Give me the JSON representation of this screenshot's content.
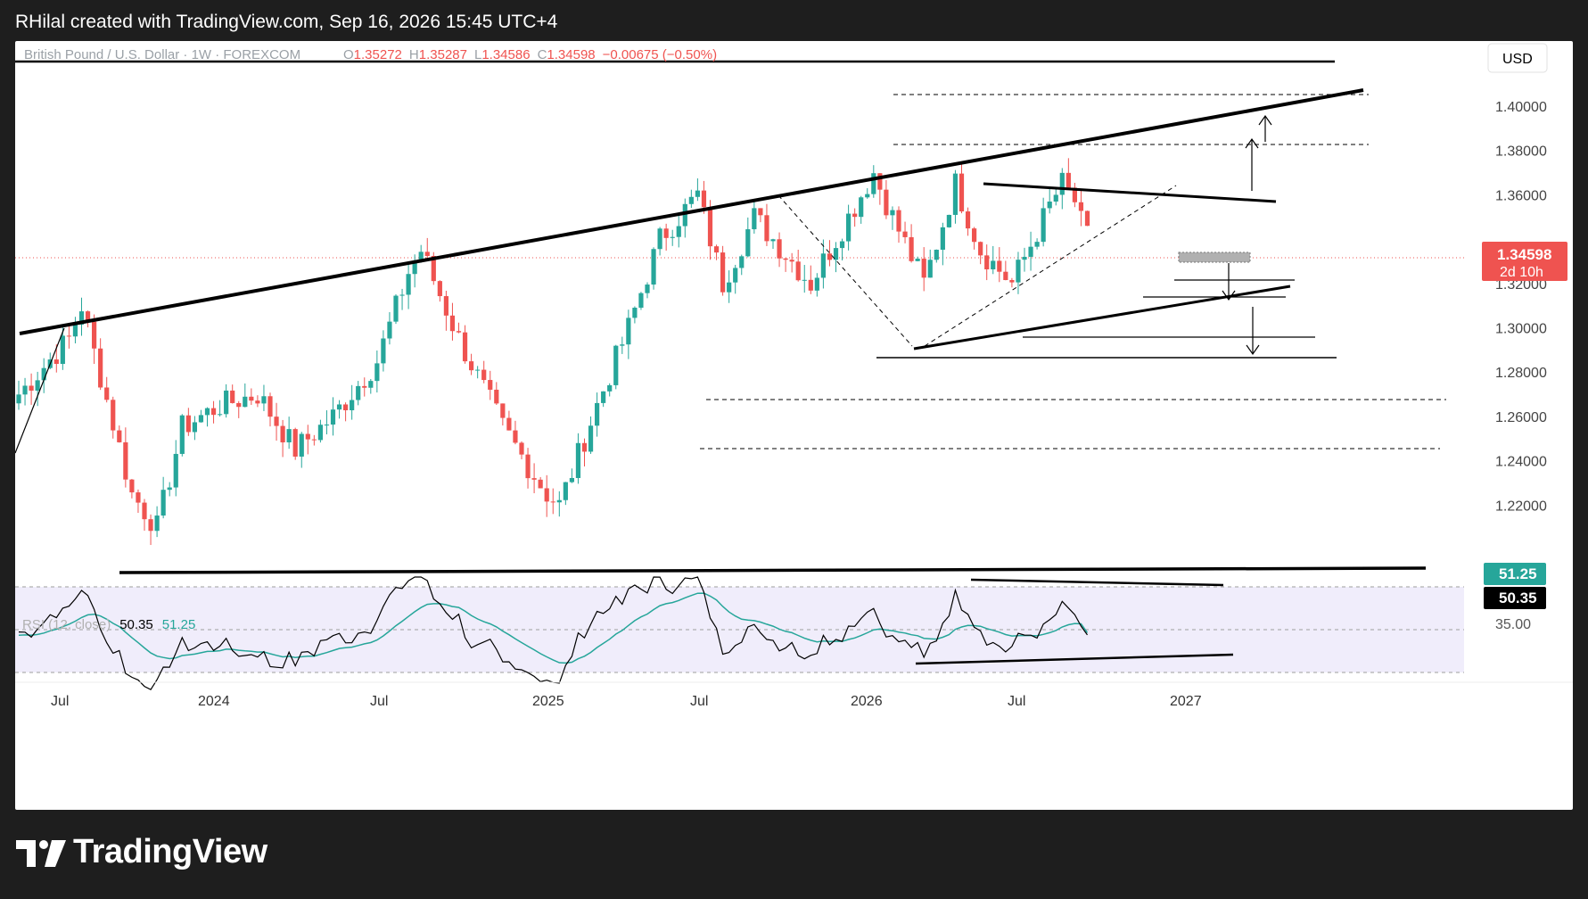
{
  "header": {
    "attribution": "RHilal created with TradingView.com, Sep 16, 2026 15:45 UTC+4"
  },
  "legend": {
    "symbol": "British Pound / U.S. Dollar · 1W · FOREXCOM",
    "open_label": "O",
    "open": "1.35272",
    "high_label": "H",
    "high": "1.35287",
    "low_label": "L",
    "low": "1.34586",
    "close_label": "C",
    "close": "1.34598",
    "change": "−0.00675 (−0.50%)"
  },
  "currency_button": "USD",
  "price_badge": {
    "price": "1.34598",
    "countdown": "2d 10h"
  },
  "rsi": {
    "label": "RSI (12, close)",
    "value": "50.35",
    "ma_value": "51.25",
    "level_label": "35.00"
  },
  "footer": {
    "brand": "TradingView"
  },
  "colors": {
    "up": "#26a69a",
    "down": "#ef5350",
    "rsi_line": "#000000",
    "rsi_ma": "#26a69a",
    "price_line": "#ef5350"
  },
  "chart_data": {
    "type": "candlestick",
    "title": "British Pound / U.S. Dollar · 1W · FOREXCOM",
    "timeframe": "1W",
    "y_range": [
      1.196,
      1.42
    ],
    "y_ticks": [
      "1.40000",
      "1.38000",
      "1.36000",
      "1.32000",
      "1.30000",
      "1.28000",
      "1.26000",
      "1.24000",
      "1.22000"
    ],
    "x_ticks": [
      "Jul",
      "2024",
      "Jul",
      "2025",
      "Jul",
      "2026",
      "Jul",
      "2027"
    ],
    "ohlc_anchor_points": [
      {
        "week": 0,
        "close": 1.27
      },
      {
        "week": 8,
        "close": 1.295
      },
      {
        "week": 10,
        "close": 1.31
      },
      {
        "week": 18,
        "close": 1.225
      },
      {
        "week": 22,
        "close": 1.21
      },
      {
        "week": 26,
        "close": 1.255
      },
      {
        "week": 32,
        "close": 1.265
      },
      {
        "week": 38,
        "close": 1.27
      },
      {
        "week": 44,
        "close": 1.245
      },
      {
        "week": 50,
        "close": 1.26
      },
      {
        "week": 57,
        "close": 1.285
      },
      {
        "week": 62,
        "close": 1.325
      },
      {
        "week": 64,
        "close": 1.335
      },
      {
        "week": 70,
        "close": 1.295
      },
      {
        "week": 77,
        "close": 1.255
      },
      {
        "week": 84,
        "close": 1.225
      },
      {
        "week": 86,
        "close": 1.22
      },
      {
        "week": 92,
        "close": 1.265
      },
      {
        "week": 97,
        "close": 1.3
      },
      {
        "week": 102,
        "close": 1.34
      },
      {
        "week": 108,
        "close": 1.36
      },
      {
        "week": 112,
        "close": 1.32
      },
      {
        "week": 117,
        "close": 1.35
      },
      {
        "week": 126,
        "close": 1.32
      },
      {
        "week": 132,
        "close": 1.35
      },
      {
        "week": 136,
        "close": 1.37
      },
      {
        "week": 139,
        "close": 1.35
      },
      {
        "week": 144,
        "close": 1.32
      },
      {
        "week": 149,
        "close": 1.365
      },
      {
        "week": 153,
        "close": 1.335
      },
      {
        "week": 158,
        "close": 1.32
      },
      {
        "week": 164,
        "close": 1.355
      },
      {
        "week": 166,
        "close": 1.365
      },
      {
        "week": 169,
        "close": 1.3532
      }
    ],
    "last_candle": {
      "open": 1.35272,
      "high": 1.35287,
      "low": 1.34586,
      "close": 1.34598
    },
    "current_price": 1.34598,
    "rsi_y_range": [
      25,
      95
    ],
    "rsi_levels": [
      70,
      35
    ],
    "rsi_value": 50.35,
    "rsi_ma_value": 51.25
  }
}
